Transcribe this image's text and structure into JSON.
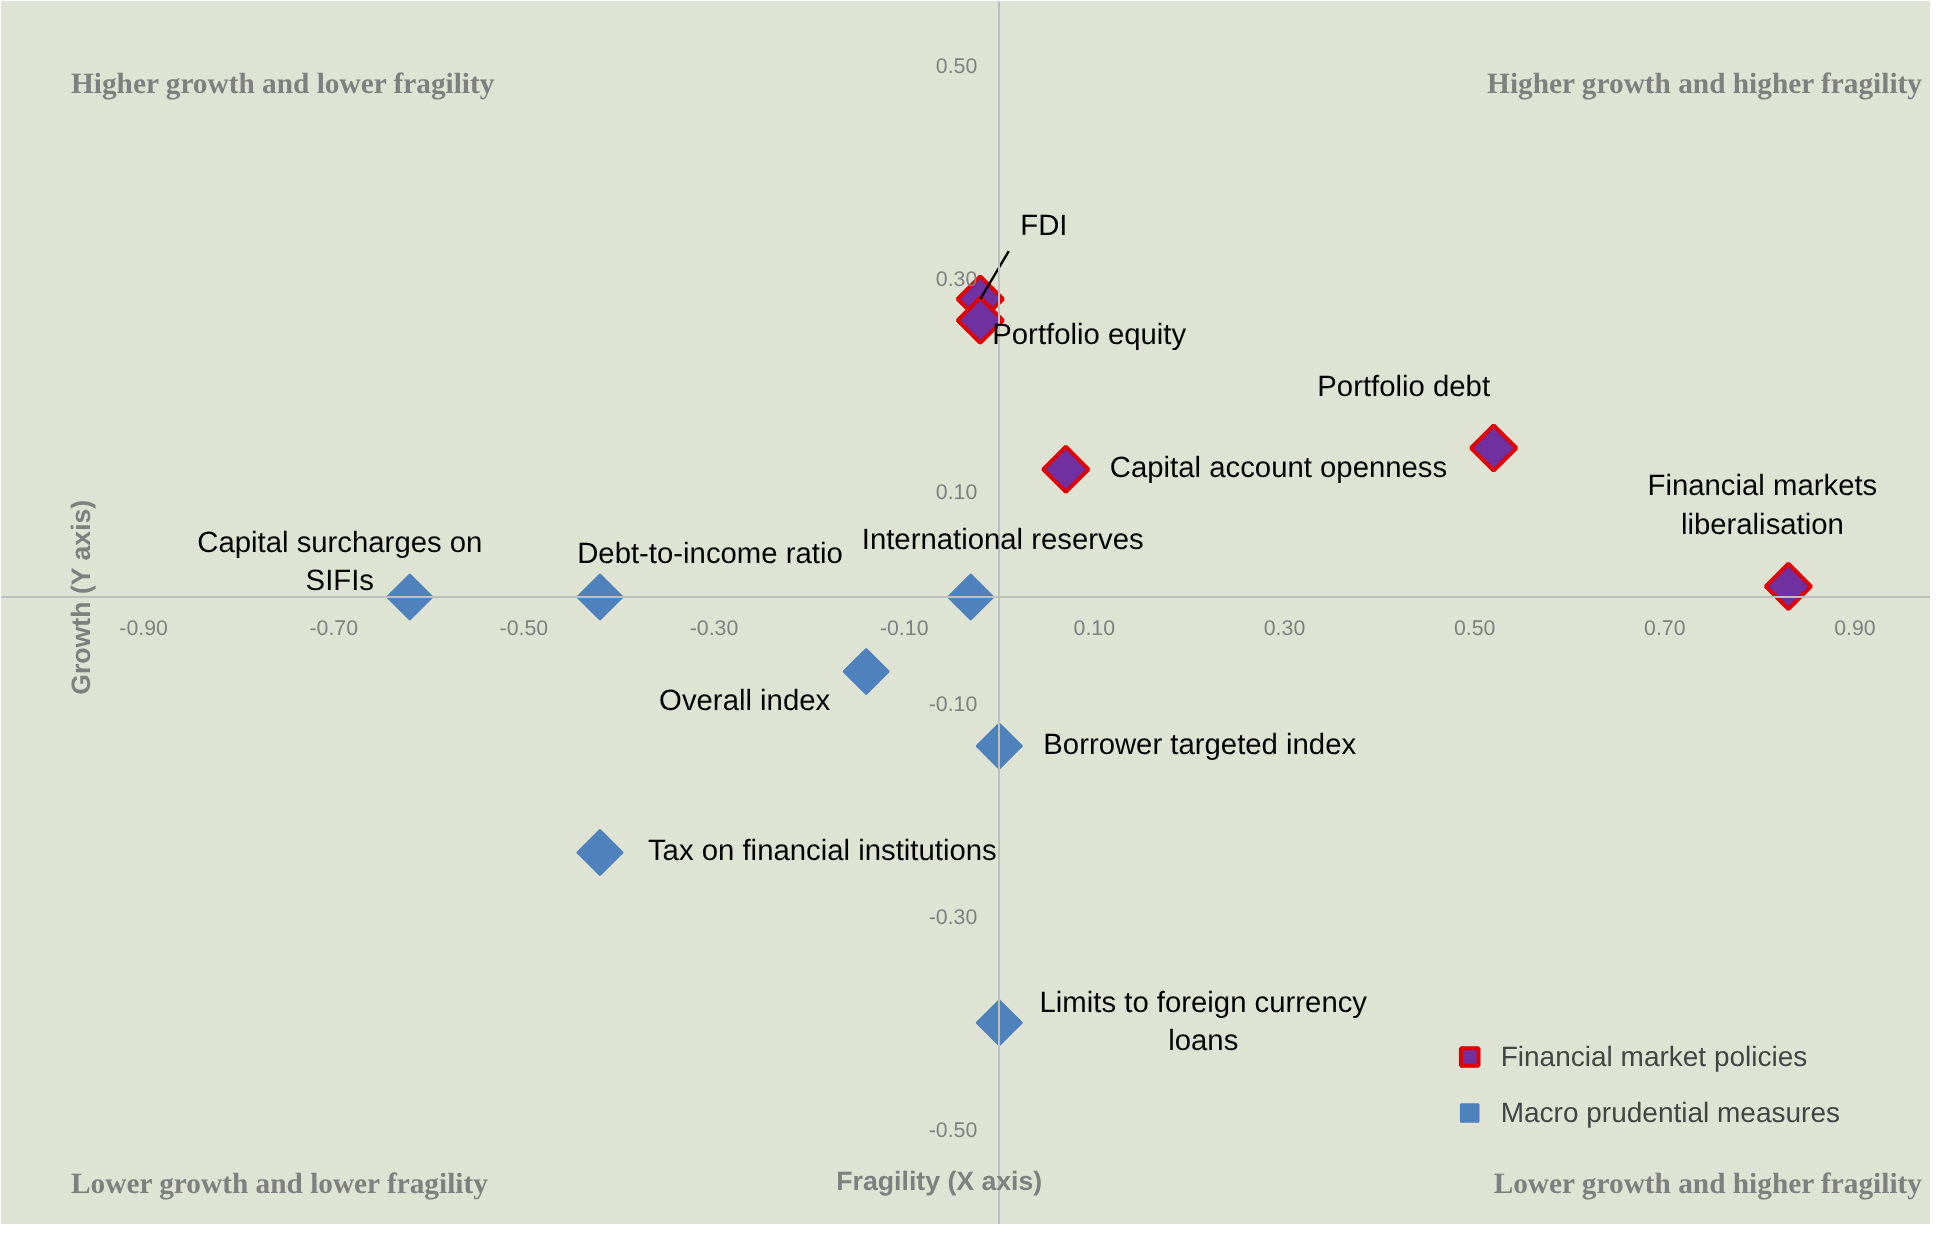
{
  "chart_data": {
    "type": "scatter",
    "xlabel": "Fragility (X axis)",
    "ylabel": "Growth (Y axis)",
    "xlim": [
      -1.05,
      0.98
    ],
    "ylim": [
      -0.59,
      0.56
    ],
    "xticks": [
      {
        "value": -0.9,
        "label": "-0.90"
      },
      {
        "value": -0.7,
        "label": "-0.70"
      },
      {
        "value": -0.5,
        "label": "-0.50"
      },
      {
        "value": -0.3,
        "label": "-0.30"
      },
      {
        "value": -0.1,
        "label": "-0.10"
      },
      {
        "value": 0.1,
        "label": "0.10"
      },
      {
        "value": 0.3,
        "label": "0.30"
      },
      {
        "value": 0.5,
        "label": "0.50"
      },
      {
        "value": 0.7,
        "label": "0.70"
      },
      {
        "value": 0.9,
        "label": "0.90"
      }
    ],
    "yticks": [
      {
        "value": -0.5,
        "label": "-0.50"
      },
      {
        "value": -0.3,
        "label": "-0.30"
      },
      {
        "value": -0.1,
        "label": "-0.10"
      },
      {
        "value": 0.1,
        "label": "0.10"
      },
      {
        "value": 0.3,
        "label": "0.30"
      },
      {
        "value": 0.5,
        "label": "0.50"
      }
    ],
    "marker": "diamond",
    "grid": false,
    "legend": "bottom right",
    "series": [
      {
        "name": "Financial market policies",
        "color": "#7030a0",
        "x": [
          -0.02,
          -0.02,
          0.07,
          0.52,
          0.83
        ],
        "values": [
          0.28,
          0.26,
          0.12,
          0.14,
          0.01
        ]
      },
      {
        "name": "Macro prudential measures",
        "color": "#4f81bd",
        "x": [
          -0.62,
          -0.42,
          -0.03,
          -0.14,
          0.0,
          -0.42,
          0.0
        ],
        "values": [
          0.0,
          0.0,
          0.0,
          -0.07,
          -0.14,
          -0.24,
          -0.4
        ]
      }
    ],
    "annotations": [
      "Higher growth and lower fragility",
      "Higher growth and higher fragility",
      "Lower growth and lower fragility",
      "Lower growth and higher fragility",
      {
        "text": "FDI",
        "x": -0.02,
        "y": 0.28
      },
      {
        "text": "Portfolio equity",
        "x": -0.02,
        "y": 0.26
      },
      {
        "text": "Capital account openness",
        "x": 0.07,
        "y": 0.12
      },
      {
        "text": "Portfolio debt",
        "x": 0.52,
        "y": 0.14
      },
      {
        "text": "Financial markets\nliberalisation",
        "x": 0.83,
        "y": 0.01
      },
      {
        "text": "Capital surcharges on\nSIFIs",
        "x": -0.62,
        "y": 0.0
      },
      {
        "text": "Debt-to-income ratio",
        "x": -0.42,
        "y": 0.0
      },
      {
        "text": "International  reserves",
        "x": -0.03,
        "y": 0.0
      },
      {
        "text": "Overall index",
        "x": -0.14,
        "y": -0.07
      },
      {
        "text": "Borrower targeted index",
        "x": 0.0,
        "y": -0.14
      },
      {
        "text": "Tax on financial institutions",
        "x": -0.42,
        "y": -0.24
      },
      {
        "text": "Limits to foreign currency\nloans",
        "x": 0.0,
        "y": -0.4
      }
    ]
  }
}
